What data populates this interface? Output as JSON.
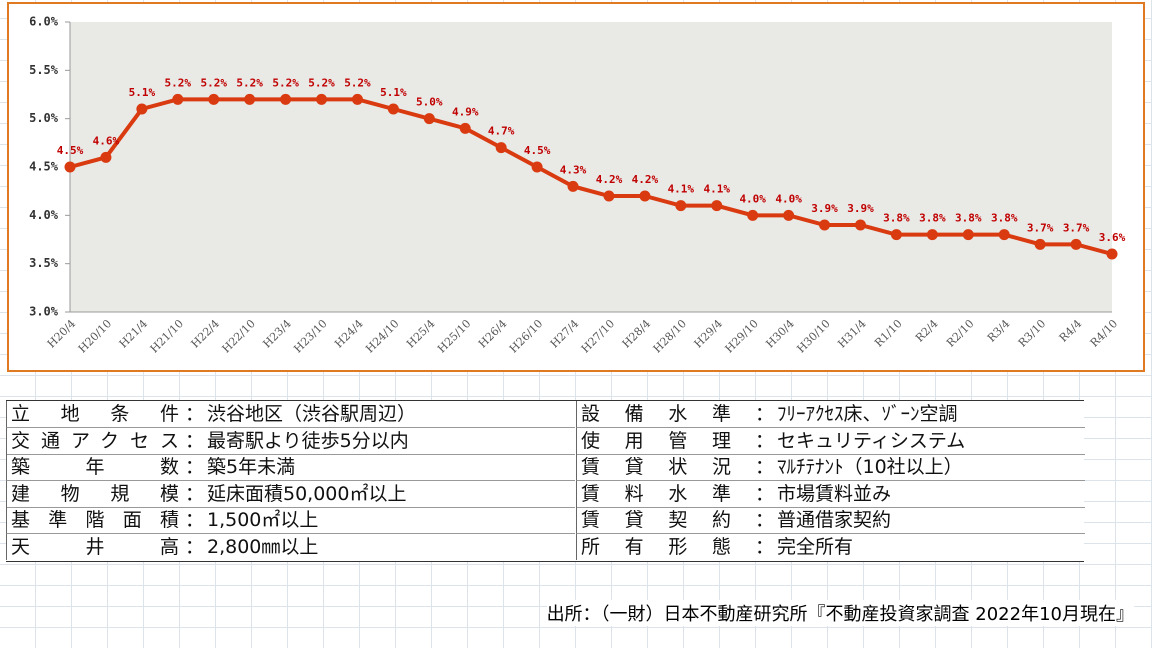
{
  "chart_data": {
    "type": "line",
    "categories": [
      "H20/4",
      "H20/10",
      "H21/4",
      "H21/10",
      "H22/4",
      "H22/10",
      "H23/4",
      "H23/10",
      "H24/4",
      "H24/10",
      "H25/4",
      "H25/10",
      "H26/4",
      "H26/10",
      "H27/4",
      "H27/10",
      "H28/4",
      "H28/10",
      "H29/4",
      "H29/10",
      "H30/4",
      "H30/10",
      "H31/4",
      "R1/10",
      "R2/4",
      "R2/10",
      "R3/4",
      "R3/10",
      "R4/4",
      "R4/10"
    ],
    "values": [
      4.5,
      4.6,
      5.1,
      5.2,
      5.2,
      5.2,
      5.2,
      5.2,
      5.2,
      5.1,
      5.0,
      4.9,
      4.7,
      4.5,
      4.3,
      4.2,
      4.2,
      4.1,
      4.1,
      4.0,
      4.0,
      3.9,
      3.9,
      3.8,
      3.8,
      3.8,
      3.8,
      3.7,
      3.7,
      3.6
    ],
    "value_labels": [
      "4.5%",
      "4.6%",
      "5.1%",
      "5.2%",
      "5.2%",
      "5.2%",
      "5.2%",
      "5.2%",
      "5.2%",
      "5.1%",
      "5.0%",
      "4.9%",
      "4.7%",
      "4.5%",
      "4.3%",
      "4.2%",
      "4.2%",
      "4.1%",
      "4.1%",
      "4.0%",
      "4.0%",
      "3.9%",
      "3.9%",
      "3.8%",
      "3.8%",
      "3.8%",
      "3.8%",
      "3.7%",
      "3.7%",
      "3.6%"
    ],
    "color": "#d93a10",
    "ylim": [
      3,
      6
    ],
    "yticks": [
      {
        "value": 3,
        "label": "3.0%"
      },
      {
        "value": 3.5,
        "label": "3.5%"
      },
      {
        "value": 4,
        "label": "4.0%"
      },
      {
        "value": 4.5,
        "label": "4.5%"
      },
      {
        "value": 5,
        "label": "5.0%"
      },
      {
        "value": 5.5,
        "label": "5.5%"
      },
      {
        "value": 6,
        "label": "6.0%"
      }
    ],
    "grid": false
  },
  "table": {
    "separator": "：",
    "left": [
      [
        "立地条件",
        "渋谷地区（渋谷駅周辺）"
      ],
      [
        "交通アクセス",
        "最寄駅より徒歩5分以内"
      ],
      [
        "築年数",
        "築5年未満"
      ],
      [
        "建物規模",
        "延床面積50,000㎡以上"
      ],
      [
        "基準階面積",
        "1,500㎡以上"
      ],
      [
        "天井高",
        "2,800㎜以上"
      ]
    ],
    "right": [
      [
        "設備水準",
        "ﾌﾘｰｱｸｾｽ床、ｿﾞｰﾝ空調"
      ],
      [
        "使用管理",
        "セキュリティシステム"
      ],
      [
        "賃貸状況",
        "ﾏﾙﾁﾃﾅﾝﾄ（10社以上）"
      ],
      [
        "賃料水準",
        "市場賃料並み"
      ],
      [
        "賃貸契約",
        "普通借家契約"
      ],
      [
        "所有形態",
        "完全所有"
      ]
    ]
  },
  "source": "出所：（一財）日本不動産研究所『不動産投資家調査 2022年10月現在』"
}
